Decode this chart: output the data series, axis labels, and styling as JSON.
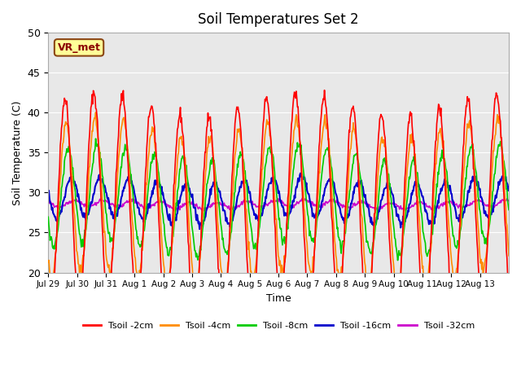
{
  "title": "Soil Temperatures Set 2",
  "xlabel": "Time",
  "ylabel": "Soil Temperature (C)",
  "ylim": [
    20,
    50
  ],
  "annotation_text": "VR_met",
  "xtick_labels": [
    "Jul 29",
    "Jul 30",
    "Jul 31",
    "Aug 1",
    "Aug 2",
    "Aug 3",
    "Aug 4",
    "Aug 5",
    "Aug 6",
    "Aug 7",
    "Aug 8",
    "Aug 9",
    "Aug 10",
    "Aug 11",
    "Aug 12",
    "Aug 13"
  ],
  "xtick_positions": [
    0,
    1,
    2,
    3,
    4,
    5,
    6,
    7,
    8,
    9,
    10,
    11,
    12,
    13,
    14,
    15
  ],
  "ytick_values": [
    20,
    25,
    30,
    35,
    40,
    45,
    50
  ],
  "colors": {
    "Tsoil -2cm": "#ff0000",
    "Tsoil -4cm": "#ff8c00",
    "Tsoil -8cm": "#00cc00",
    "Tsoil -16cm": "#0000cc",
    "Tsoil -32cm": "#cc00cc"
  },
  "bg_color": "#e8e8e8",
  "grid_color": "#ffffff",
  "legend_labels": [
    "Tsoil -2cm",
    "Tsoil -4cm",
    "Tsoil -8cm",
    "Tsoil -16cm",
    "Tsoil -32cm"
  ]
}
